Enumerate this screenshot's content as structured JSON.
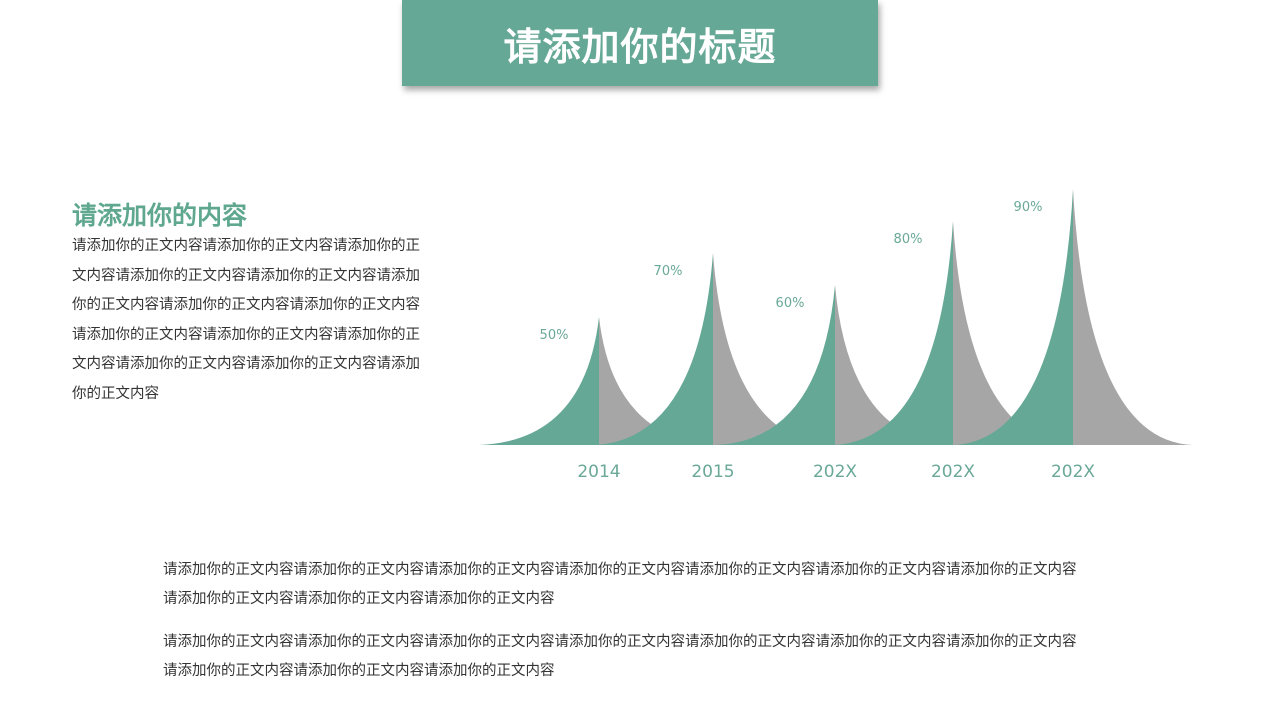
{
  "header": {
    "title": "请添加你的标题"
  },
  "side": {
    "heading": "请添加你的内容",
    "body": "请添加你的正文内容请添加你的正文内容请添加你的正文内容请添加你的正文内容请添加你的正文内容请添加你的正文内容请添加你的正文内容请添加你的正文内容请添加你的正文内容请添加你的正文内容请添加你的正文内容请添加你的正文内容请添加你的正文内容请添加你的正文内容"
  },
  "bottom": {
    "paragraphs": [
      "请添加你的正文内容请添加你的正文内容请添加你的正文内容请添加你的正文内容请添加你的正文内容请添加你的正文内容请添加你的正文内容请添加你的正文内容请添加你的正文内容请添加你的正文内容",
      "请添加你的正文内容请添加你的正文内容请添加你的正文内容请添加你的正文内容请添加你的正文内容请添加你的正文内容请添加你的正文内容请添加你的正文内容请添加你的正文内容请添加你的正文内容"
    ]
  },
  "colors": {
    "accent": "#66a896",
    "gray": "#a6a6a6",
    "text": "#333333"
  },
  "chart_data": {
    "type": "area",
    "categories": [
      "2014",
      "2015",
      "202X",
      "202X",
      "202X"
    ],
    "values": [
      50,
      70,
      60,
      80,
      90
    ],
    "labels": [
      "50%",
      "70%",
      "60%",
      "80%",
      "90%"
    ],
    "grid": false
  }
}
